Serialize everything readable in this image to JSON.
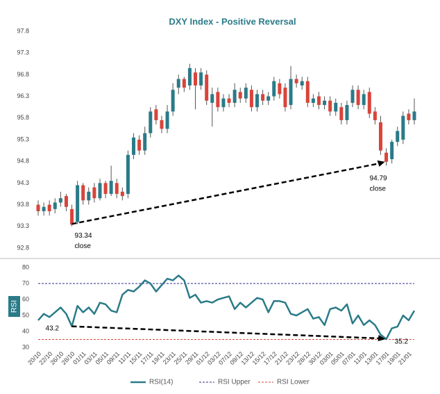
{
  "chart_data": [
    {
      "type": "candlestick",
      "title": "DXY Index - Positive Reversal",
      "up_color": "#2a7b88",
      "down_color": "#d9443a",
      "ylim": [
        92.8,
        97.8
      ],
      "yticks": [
        92.8,
        93.3,
        93.8,
        94.3,
        94.8,
        95.3,
        95.8,
        96.3,
        96.8,
        97.3,
        97.8
      ],
      "open": [
        93.8,
        93.65,
        93.8,
        93.7,
        93.85,
        94.0,
        93.7,
        93.4,
        94.25,
        93.9,
        94.2,
        93.95,
        94.3,
        94.05,
        94.3,
        94.1,
        94.05,
        94.95,
        95.3,
        95.05,
        95.45,
        96.0,
        95.75,
        95.55,
        95.95,
        96.5,
        96.7,
        96.55,
        96.85,
        96.55,
        96.8,
        96.15,
        96.4,
        96.05,
        96.25,
        96.15,
        96.4,
        96.25,
        96.45,
        96.05,
        96.35,
        96.2,
        96.3,
        96.6,
        96.5,
        96.1,
        96.7,
        96.55,
        96.65,
        96.15,
        96.3,
        96.1,
        96.2,
        95.95,
        96.05,
        95.75,
        96.15,
        96.45,
        96.1,
        96.4,
        95.95,
        95.7,
        95.0,
        94.85,
        95.25,
        95.3,
        95.9,
        95.75
      ],
      "high": [
        93.9,
        93.85,
        93.9,
        93.95,
        94.1,
        94.05,
        93.8,
        94.35,
        94.3,
        94.2,
        94.3,
        94.4,
        94.35,
        94.7,
        94.4,
        94.2,
        95.05,
        95.45,
        95.4,
        95.6,
        96.05,
        96.1,
        95.85,
        96.1,
        96.6,
        96.8,
        96.75,
        97.05,
        96.95,
        96.95,
        96.9,
        96.5,
        96.5,
        96.35,
        96.35,
        96.6,
        96.5,
        96.6,
        96.55,
        96.45,
        96.45,
        96.4,
        96.75,
        96.7,
        96.6,
        97.0,
        96.8,
        96.75,
        96.75,
        96.35,
        96.4,
        96.3,
        96.3,
        96.25,
        96.15,
        96.2,
        96.55,
        96.55,
        96.45,
        96.5,
        96.05,
        95.85,
        95.1,
        95.3,
        95.6,
        95.95,
        96.0,
        96.25
      ],
      "low": [
        93.55,
        93.55,
        93.55,
        93.6,
        93.75,
        93.65,
        93.3,
        93.35,
        93.8,
        93.8,
        93.85,
        93.9,
        93.95,
        94.0,
        93.95,
        93.9,
        93.95,
        94.85,
        94.95,
        94.95,
        95.35,
        95.65,
        95.45,
        95.45,
        95.85,
        96.35,
        96.4,
        96.45,
        96.0,
        96.45,
        96.1,
        95.6,
        95.95,
        95.95,
        96.05,
        96.05,
        96.15,
        96.15,
        95.95,
        95.95,
        96.1,
        96.1,
        96.2,
        96.25,
        95.95,
        96.0,
        96.5,
        96.45,
        96.05,
        96.05,
        96.0,
        96.0,
        95.85,
        95.85,
        95.65,
        95.65,
        96.05,
        96.0,
        96.0,
        95.8,
        95.65,
        94.95,
        94.7,
        94.75,
        95.15,
        95.2,
        95.65,
        95.65
      ],
      "close": [
        93.65,
        93.75,
        93.65,
        93.85,
        93.95,
        93.75,
        93.34,
        94.25,
        93.9,
        94.1,
        93.95,
        94.3,
        94.05,
        94.35,
        94.05,
        94.0,
        94.95,
        95.35,
        95.05,
        95.45,
        95.95,
        95.75,
        95.55,
        95.95,
        96.45,
        96.7,
        96.5,
        96.95,
        96.55,
        96.85,
        96.2,
        96.35,
        96.05,
        96.25,
        96.15,
        96.45,
        96.25,
        96.5,
        96.05,
        96.35,
        96.2,
        96.3,
        96.65,
        96.35,
        96.05,
        96.7,
        96.6,
        96.65,
        96.15,
        96.25,
        96.1,
        96.2,
        95.95,
        96.15,
        95.75,
        96.1,
        96.45,
        96.1,
        96.35,
        95.9,
        95.75,
        95.05,
        94.79,
        95.25,
        95.5,
        95.85,
        95.75,
        95.95
      ],
      "annotations": [
        {
          "text": "93.34",
          "note": "close"
        },
        {
          "text": "94.79",
          "note": "close"
        }
      ]
    },
    {
      "type": "line",
      "ylabel": "RSI",
      "categories": [
        "20/10",
        null,
        "22/10",
        null,
        "26/10",
        null,
        "28/10",
        null,
        "01/11",
        null,
        "03/11",
        null,
        "05/11",
        null,
        "09/11",
        null,
        "11/11",
        null,
        "15/11",
        null,
        "17/11",
        null,
        "19/11",
        null,
        "23/11",
        null,
        "25/11",
        null,
        "29/11",
        null,
        "01/12",
        null,
        "03/12",
        null,
        "07/12",
        null,
        "09/12",
        null,
        "13/12",
        null,
        "15/12",
        null,
        "17/12",
        null,
        "21/12",
        null,
        "23/12",
        null,
        "28/12",
        null,
        "30/12",
        null,
        "03/01",
        null,
        "05/01",
        null,
        "07/01",
        null,
        "11/01",
        null,
        "13/01",
        null,
        "17/01",
        null,
        "19/01",
        null,
        "21/01",
        null
      ],
      "ylim": [
        30,
        80
      ],
      "yticks": [
        30,
        40,
        50,
        60,
        70,
        80
      ],
      "series": [
        {
          "name": "RSI(14)",
          "color": "#2a7b88",
          "values": [
            47,
            51,
            49,
            52,
            55,
            51,
            43.2,
            56,
            52,
            55,
            51,
            58,
            57,
            53,
            52,
            63,
            66,
            65,
            68,
            72,
            70,
            65,
            69,
            73,
            72,
            75,
            72,
            61,
            63,
            58,
            59,
            58,
            60,
            61,
            62,
            54,
            58,
            55,
            58,
            61,
            60,
            52,
            59,
            59,
            58,
            51,
            50,
            52,
            54,
            48,
            49,
            44,
            54,
            55,
            53,
            57,
            45,
            50,
            44,
            47,
            44,
            38,
            35.2,
            42,
            43,
            50,
            47,
            53
          ]
        }
      ],
      "levels": [
        {
          "name": "RSI Upper",
          "color": "#2b2b8a",
          "value": 70
        },
        {
          "name": "RSI Lower",
          "color": "#d9443a",
          "value": 35
        }
      ],
      "annotations": [
        {
          "text": "43.2"
        },
        {
          "text": "35.2"
        }
      ]
    }
  ]
}
